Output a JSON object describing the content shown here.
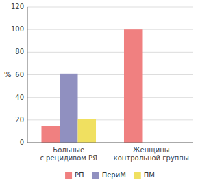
{
  "chart_data": {
    "type": "bar",
    "ylabel": "%",
    "categories": [
      "Больные\nс рецидивом РЯ",
      "Женщины\nконтрольной группы"
    ],
    "series": [
      {
        "name": "РП",
        "color": "#f08080",
        "values": [
          15,
          100
        ]
      },
      {
        "name": "ПериМ",
        "color": "#9090c0",
        "values": [
          61,
          0
        ]
      },
      {
        "name": "ПМ",
        "color": "#f0e060",
        "values": [
          21,
          0
        ]
      }
    ],
    "ylim": [
      0,
      120
    ],
    "yticks": [
      0,
      20,
      40,
      60,
      80,
      100,
      120
    ],
    "grid": true,
    "legend": "bottom"
  }
}
